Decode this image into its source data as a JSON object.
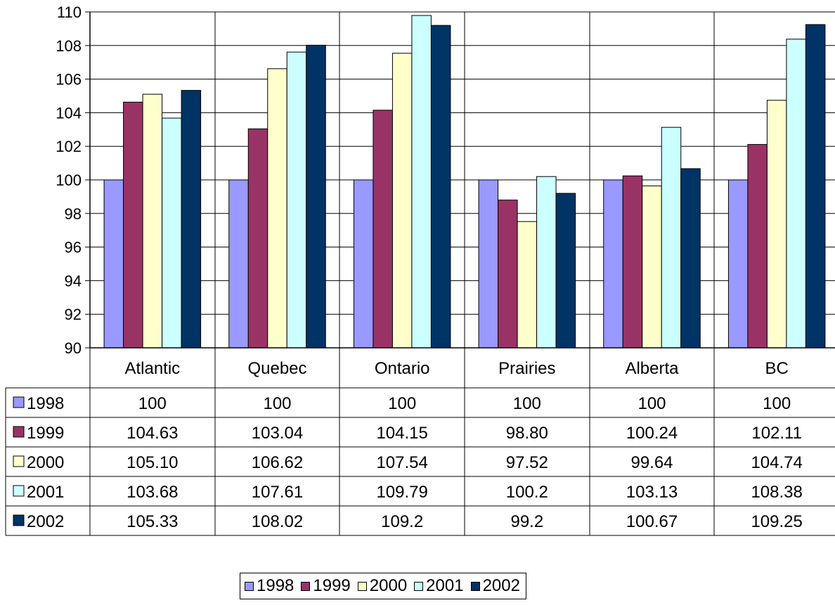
{
  "chart_data": {
    "type": "bar",
    "categories": [
      "Atlantic",
      "Quebec",
      "Ontario",
      "Prairies",
      "Alberta",
      "BC"
    ],
    "series": [
      {
        "name": "1998",
        "color": "#9999FF",
        "values": [
          100,
          100,
          100,
          100,
          100,
          100
        ],
        "labels": [
          "100",
          "100",
          "100",
          "100",
          "100",
          "100"
        ]
      },
      {
        "name": "1999",
        "color": "#993366",
        "values": [
          104.63,
          103.04,
          104.15,
          98.8,
          100.24,
          102.11
        ],
        "labels": [
          "104.63",
          "103.04",
          "104.15",
          "98.80",
          "100.24",
          "102.11"
        ]
      },
      {
        "name": "2000",
        "color": "#FFFFCC",
        "values": [
          105.1,
          106.62,
          107.54,
          97.52,
          99.64,
          104.74
        ],
        "labels": [
          "105.10",
          "106.62",
          "107.54",
          "97.52",
          "99.64",
          "104.74"
        ]
      },
      {
        "name": "2001",
        "color": "#CCFFFF",
        "values": [
          103.68,
          107.61,
          109.79,
          100.2,
          103.13,
          108.38
        ],
        "labels": [
          "103.68",
          "107.61",
          "109.79",
          "100.2",
          "103.13",
          "108.38"
        ]
      },
      {
        "name": "2002",
        "color": "#003366",
        "values": [
          105.33,
          108.02,
          109.2,
          99.2,
          100.67,
          109.25
        ],
        "labels": [
          "105.33",
          "108.02",
          "109.2",
          "99.2",
          "100.67",
          "109.25"
        ]
      }
    ],
    "ylim": [
      90,
      110
    ],
    "yticks": [
      "90",
      "92",
      "94",
      "96",
      "98",
      "100",
      "102",
      "104",
      "106",
      "108",
      "110"
    ],
    "grid": true,
    "legend": "bottom",
    "data_table": true,
    "title": "",
    "xlabel": "",
    "ylabel": ""
  }
}
